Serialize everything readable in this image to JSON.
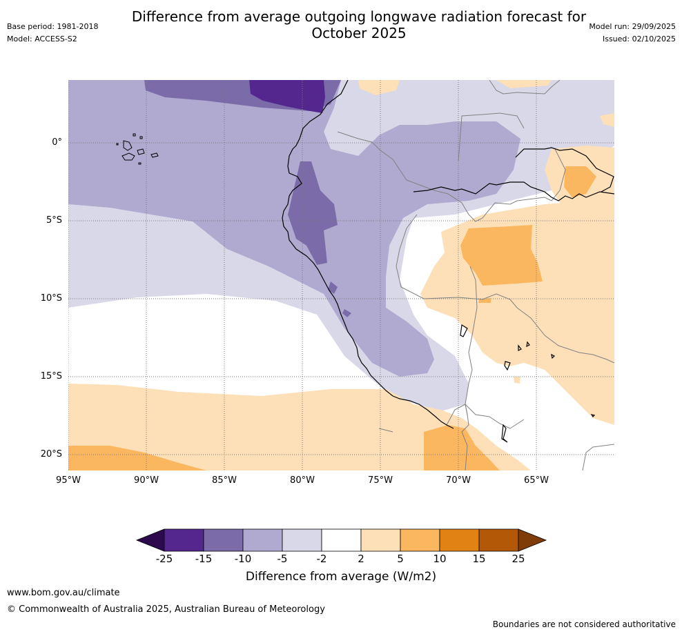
{
  "header": {
    "title_line1": "Difference from average outgoing longwave radiation forecast for",
    "title_line2": "October 2025",
    "base_period": "Base period: 1981-2018",
    "model": "Model: ACCESS-S2",
    "model_run": "Model run: 29/09/2025",
    "issued": "Issued: 02/10/2025"
  },
  "map": {
    "lat_labels": [
      "0°",
      "5°S",
      "10°S",
      "15°S",
      "20°S"
    ],
    "lon_labels": [
      "95°W",
      "90°W",
      "85°W",
      "80°W",
      "75°W",
      "70°W",
      "65°W"
    ]
  },
  "colorbar": {
    "ticks": [
      "-25",
      "-15",
      "-10",
      "-5",
      "-2",
      "2",
      "5",
      "10",
      "15",
      "25"
    ],
    "colors": [
      "#2d0a4e",
      "#54278f",
      "#7b6ba8",
      "#b0aad1",
      "#d9d8e8",
      "#ffffff",
      "#fde0b7",
      "#fbb660",
      "#e08214",
      "#b35806",
      "#7f3b08"
    ],
    "label": "Difference from average (W/m2)"
  },
  "footer": {
    "website": "www.bom.gov.au/climate",
    "copyright": "© Commonwealth of Australia 2025, Australian Bureau of Meteorology",
    "disclaimer": "Boundaries are not considered authoritative"
  }
}
